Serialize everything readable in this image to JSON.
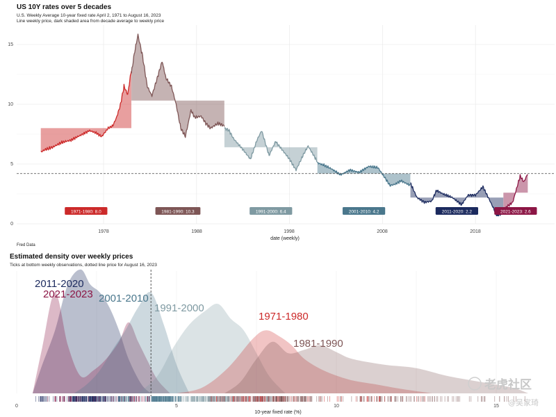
{
  "colors": {
    "1971-1980": "#cc2a2a",
    "1981-1990": "#7e5656",
    "1991-2000": "#7f9aa2",
    "2001-2010": "#4a778c",
    "2011-2020": "#1b2a5e",
    "2021-2023": "#8c1645",
    "refline": "#444444",
    "grid": "#ececec"
  },
  "top": {
    "title": "US 10Y rates over 5 decades",
    "subtitle1": "U.S. Weekly Average 10-year fixed rate April 2, 1971 to August 16, 2023",
    "subtitle2": "Line weekly price, dark shaded area from decade average to weekly price",
    "caption": "Fred Data",
    "xlabel": "date (weekly)",
    "yticks": [
      "0",
      "5",
      "10",
      "15"
    ],
    "xticks": [
      "1978",
      "1988",
      "1998",
      "2008",
      "2018"
    ]
  },
  "bottom": {
    "title": "Estimated density over weekly  prices",
    "subtitle": "Ticks at bottom weekly observations, dotted line price for August 16, 2023",
    "xlabel": "10-year fixed rate (%)",
    "xticks": [
      "0",
      "5",
      "10",
      "15"
    ]
  },
  "watermark": {
    "brand": "老虎社区",
    "author": "@吴家琦"
  },
  "chart_data": [
    {
      "type": "line",
      "title": "US 10Y rates over 5 decades",
      "xlabel": "date (weekly)",
      "ylabel": "",
      "ylim": [
        0,
        16
      ],
      "x_range": [
        1971.25,
        2023.62
      ],
      "current_price": 4.2,
      "legend_placement": "labels below each decade segment",
      "grid": true,
      "series": [
        {
          "name": "1971-1980",
          "average": 8.0,
          "x": [
            1971.25,
            1971.7,
            1972.5,
            1973.5,
            1974.5,
            1975.5,
            1976.5,
            1977.2,
            1977.8,
            1978.5,
            1979,
            1979.4,
            1979.8,
            1980.2,
            1980.6,
            1980.99
          ],
          "y": [
            6.0,
            6.2,
            6.4,
            6.8,
            7.0,
            7.4,
            7.8,
            7.6,
            7.3,
            8.0,
            8.2,
            8.9,
            9.9,
            11.5,
            10.8,
            12.9
          ]
        },
        {
          "name": "1981-1990",
          "average": 10.3,
          "x": [
            1981,
            1981.3,
            1981.7,
            1982.2,
            1982.7,
            1983.2,
            1983.7,
            1984.3,
            1984.7,
            1985.3,
            1985.8,
            1986.3,
            1986.8,
            1987.4,
            1987.8,
            1988.5,
            1989,
            1989.5,
            1990.3,
            1990.99
          ],
          "y": [
            12.6,
            14.2,
            15.8,
            14.0,
            11.5,
            10.7,
            12.0,
            13.6,
            12.2,
            11.5,
            10.0,
            8.0,
            7.3,
            9.5,
            8.9,
            9.0,
            8.4,
            8.0,
            8.4,
            8.2
          ]
        },
        {
          "name": "1991-2000",
          "average": 6.4,
          "x": [
            1991,
            1991.5,
            1992,
            1993,
            1993.8,
            1994.5,
            1995,
            1995.8,
            1996.5,
            1997,
            1998,
            1998.7,
            1999.5,
            2000,
            2000.99
          ],
          "y": [
            8.0,
            7.8,
            7.1,
            6.2,
            5.4,
            7.0,
            7.8,
            5.7,
            6.9,
            6.4,
            5.4,
            4.5,
            5.8,
            6.5,
            5.2
          ]
        },
        {
          "name": "2001-2010",
          "average": 4.2,
          "x": [
            2001,
            2001.7,
            2002.5,
            2003.5,
            2004.5,
            2005.5,
            2006.5,
            2007.5,
            2008.3,
            2008.8,
            2009.3,
            2010,
            2010.99
          ],
          "y": [
            5.1,
            4.9,
            4.6,
            4.1,
            4.5,
            4.3,
            4.8,
            4.7,
            3.8,
            3.2,
            3.3,
            3.6,
            3.2
          ]
        },
        {
          "name": "2011-2020",
          "average": 2.2,
          "x": [
            2011,
            2011.7,
            2012.5,
            2013.3,
            2013.8,
            2014.5,
            2015.5,
            2016.5,
            2017.2,
            2018,
            2018.8,
            2019.5,
            2020.3,
            2020.99
          ],
          "y": [
            3.4,
            2.2,
            1.8,
            1.9,
            2.8,
            2.5,
            2.2,
            1.6,
            2.4,
            2.4,
            3.1,
            2.0,
            0.7,
            0.9
          ]
        },
        {
          "name": "2021-2023",
          "average": 2.6,
          "x": [
            2021,
            2021.5,
            2022,
            2022.4,
            2022.8,
            2023.2,
            2023.62
          ],
          "y": [
            1.1,
            1.5,
            1.8,
            2.9,
            4.0,
            3.5,
            4.2
          ]
        }
      ]
    },
    {
      "type": "area",
      "title": "Estimated density over weekly  prices",
      "xlabel": "10-year fixed rate (%)",
      "ylabel": "",
      "xlim": [
        0.5,
        16
      ],
      "current_price": 4.2,
      "series": [
        {
          "name": "2011-2020",
          "x": [
            0.5,
            0.8,
            1.2,
            1.6,
            2.0,
            2.3,
            2.6,
            2.9,
            3.2,
            3.5,
            3.9,
            4.2
          ],
          "y": [
            0,
            0.25,
            0.55,
            0.95,
            1.08,
            0.95,
            0.88,
            0.75,
            0.55,
            0.3,
            0.08,
            0
          ]
        },
        {
          "name": "2021-2023",
          "x": [
            0.5,
            0.8,
            1.2,
            1.6,
            2.0,
            2.4,
            2.8,
            3.2,
            3.5,
            3.8,
            4.1,
            4.4,
            4.8
          ],
          "y": [
            0,
            0.4,
            0.88,
            0.42,
            0.15,
            0.2,
            0.3,
            0.45,
            0.62,
            0.45,
            0.28,
            0.12,
            0
          ]
        },
        {
          "name": "2001-2010",
          "x": [
            1.8,
            2.2,
            2.6,
            3.0,
            3.4,
            3.8,
            4.2,
            4.6,
            5.0,
            5.4
          ],
          "y": [
            0,
            0.08,
            0.2,
            0.38,
            0.55,
            0.75,
            0.88,
            0.6,
            0.25,
            0
          ]
        },
        {
          "name": "1991-2000",
          "x": [
            3.8,
            4.4,
            4.9,
            5.4,
            5.9,
            6.3,
            6.7,
            7.1,
            7.5,
            7.9,
            8.4
          ],
          "y": [
            0,
            0.15,
            0.4,
            0.6,
            0.72,
            0.78,
            0.65,
            0.55,
            0.35,
            0.15,
            0
          ]
        },
        {
          "name": "1971-1980",
          "x": [
            5.0,
            5.8,
            6.6,
            7.4,
            7.8,
            8.2,
            8.6,
            9.0,
            9.6,
            10.4,
            11.2,
            12.0,
            13.0
          ],
          "y": [
            0,
            0.05,
            0.22,
            0.48,
            0.55,
            0.5,
            0.42,
            0.3,
            0.2,
            0.12,
            0.08,
            0.04,
            0
          ]
        },
        {
          "name": "1981-1990",
          "x": [
            6.5,
            7.0,
            7.5,
            8.0,
            8.5,
            9.0,
            9.5,
            10.0,
            10.5,
            11.5,
            12.5,
            13.5,
            14.5,
            15.5,
            16.0
          ],
          "y": [
            0,
            0.1,
            0.3,
            0.45,
            0.35,
            0.38,
            0.42,
            0.36,
            0.3,
            0.25,
            0.22,
            0.15,
            0.1,
            0.05,
            0
          ]
        }
      ]
    }
  ]
}
